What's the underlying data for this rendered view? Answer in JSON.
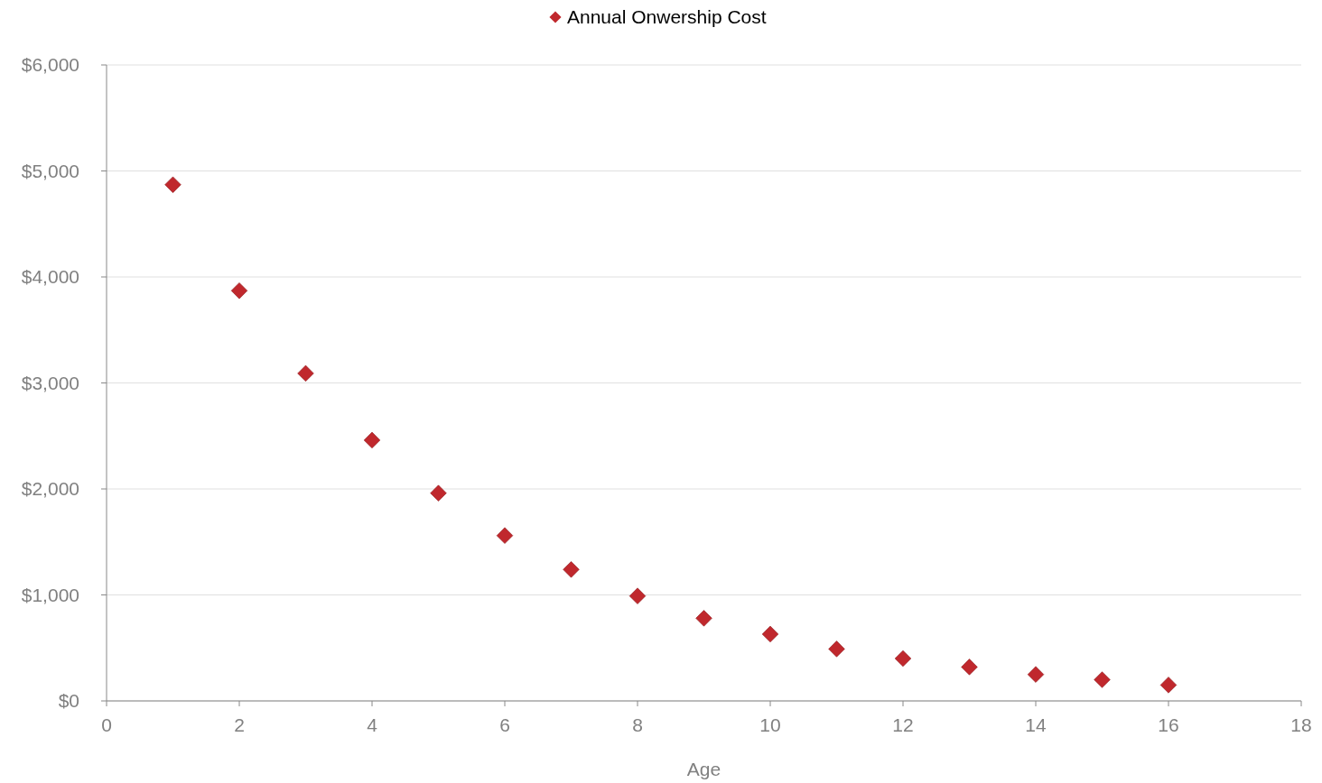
{
  "chart_data": {
    "type": "scatter",
    "xlabel": "Age",
    "x": [
      1,
      2,
      3,
      4,
      5,
      6,
      7,
      8,
      9,
      10,
      11,
      12,
      13,
      14,
      15,
      16
    ],
    "series": [
      {
        "name": "Annual Onwership Cost",
        "color": "#c0282d",
        "values": [
          4870,
          3870,
          3090,
          2460,
          1960,
          1560,
          1240,
          990,
          780,
          630,
          490,
          400,
          320,
          250,
          200,
          150
        ]
      }
    ],
    "xlim": [
      0,
      18
    ],
    "xticks": [
      0,
      2,
      4,
      6,
      8,
      10,
      12,
      14,
      16,
      18
    ],
    "ylim": [
      0,
      6000
    ],
    "yticks": [
      {
        "value": 0,
        "label": "$0"
      },
      {
        "value": 1000,
        "label": "$1,000"
      },
      {
        "value": 2000,
        "label": "$2,000"
      },
      {
        "value": 3000,
        "label": "$3,000"
      },
      {
        "value": 4000,
        "label": "$4,000"
      },
      {
        "value": 5000,
        "label": "$5,000"
      },
      {
        "value": 6000,
        "label": "$6,000"
      }
    ],
    "grid": "y",
    "legend": "top",
    "marker": "diamond"
  }
}
